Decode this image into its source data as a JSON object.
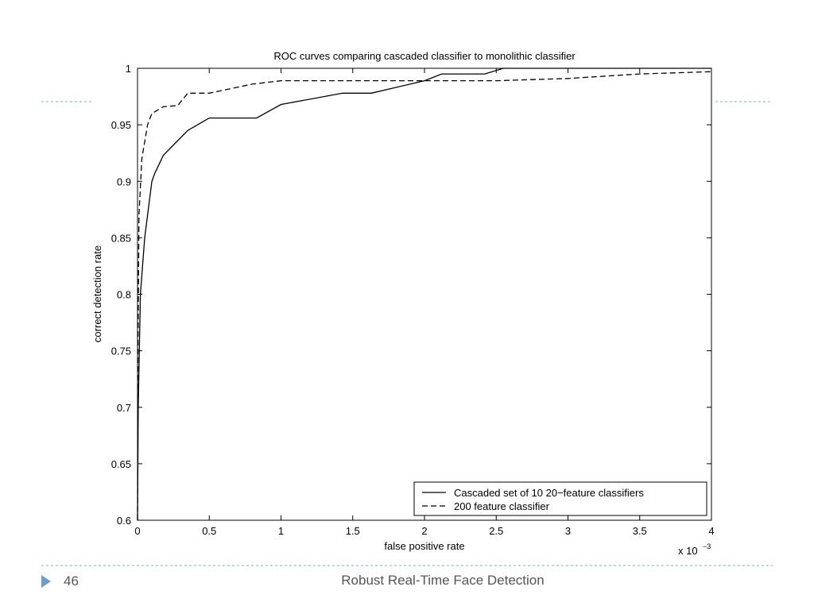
{
  "chart_data": {
    "type": "line",
    "title": "ROC curves comparing cascaded classifier to monolithic classifier",
    "x_label": "false positive rate",
    "y_label": "correct detection rate",
    "x_multiplier": {
      "base": "x 10",
      "exponent": "−3"
    },
    "xlim": [
      0,
      4
    ],
    "xticks": [
      0,
      0.5,
      1,
      1.5,
      2,
      2.5,
      3,
      3.5,
      4
    ],
    "ylim": [
      0.6,
      1
    ],
    "yticks": [
      0.6,
      0.65,
      0.7,
      0.75,
      0.8,
      0.85,
      0.9,
      0.95,
      1
    ],
    "grid": false,
    "legend": "lower right",
    "series": [
      {
        "name": "Cascaded set of 10 20−feature classifiers",
        "color": "#000000",
        "line_style": "solid",
        "x": [
          0,
          0.005,
          0.02,
          0.05,
          0.1,
          0.12,
          0.18,
          0.35,
          0.5,
          0.83,
          1.0,
          1.43,
          1.63,
          2.0,
          2.12,
          2.42,
          2.55,
          4
        ],
        "values": [
          0.6,
          0.7,
          0.8,
          0.85,
          0.9,
          0.907,
          0.923,
          0.945,
          0.956,
          0.956,
          0.968,
          0.978,
          0.978,
          0.989,
          0.995,
          0.995,
          1.0,
          1.0
        ]
      },
      {
        "name": "200 feature classifier",
        "color": "#000000",
        "line_style": "dashed",
        "x": [
          0,
          0.003,
          0.01,
          0.03,
          0.07,
          0.1,
          0.18,
          0.28,
          0.35,
          0.5,
          0.8,
          1.0,
          2.5,
          3.0,
          3.5,
          4
        ],
        "values": [
          0.6,
          0.75,
          0.87,
          0.92,
          0.95,
          0.96,
          0.966,
          0.967,
          0.978,
          0.978,
          0.986,
          0.989,
          0.989,
          0.991,
          0.995,
          0.997
        ]
      }
    ]
  },
  "footer": {
    "page_number": "46",
    "title": "Robust Real-Time Face Detection"
  }
}
